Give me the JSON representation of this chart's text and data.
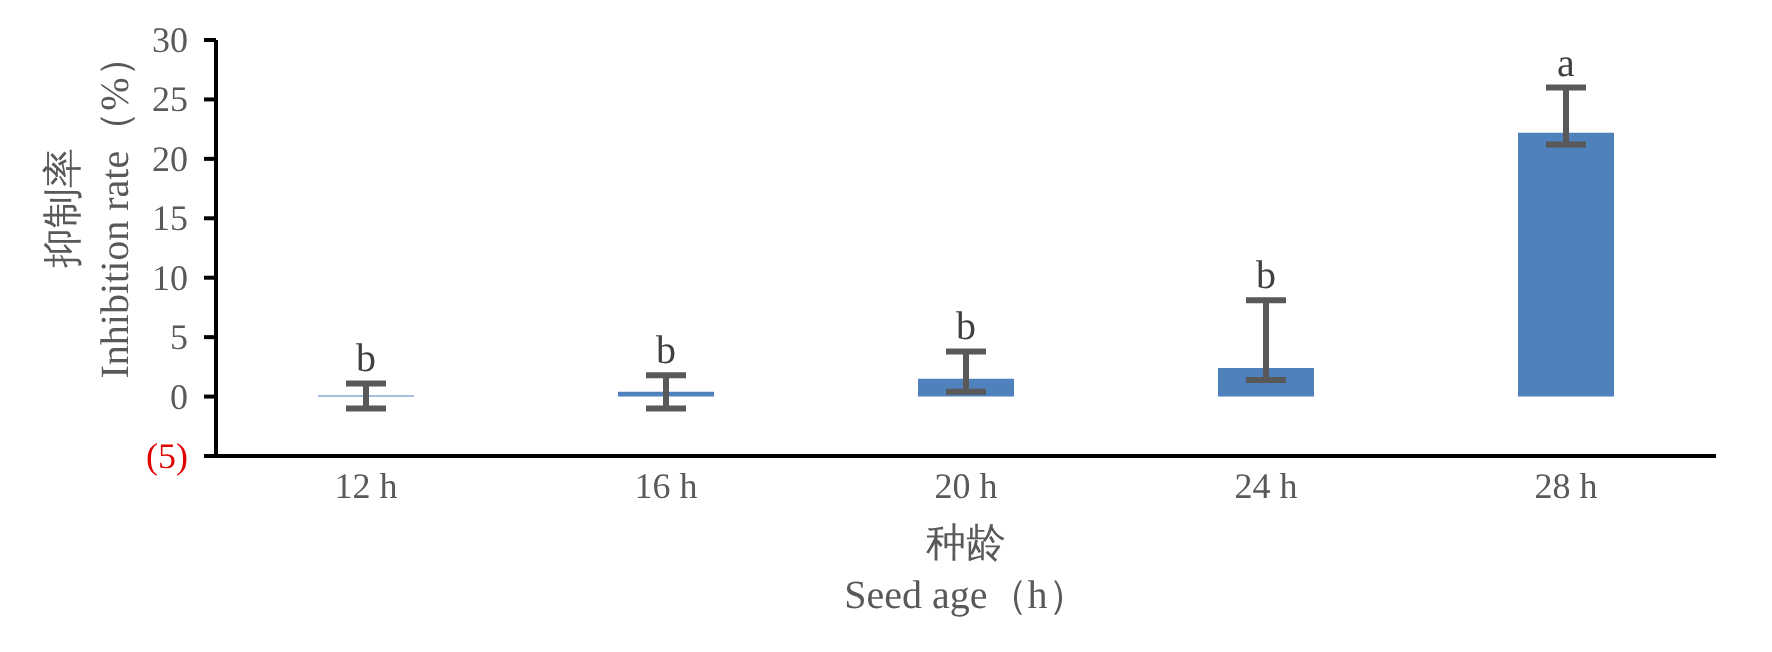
{
  "chart_data": {
    "type": "bar",
    "xlabel": "种龄\nSeed age（h）",
    "ylabel": "抑制率\nInhibition rate（%）",
    "categories": [
      "12 h",
      "16 h",
      "20 h",
      "24 h",
      "28 h"
    ],
    "values": [
      0.1,
      0.4,
      1.5,
      2.4,
      22.2
    ],
    "color": "#4f81bd",
    "errors": [
      [
        -1.0,
        1.1
      ],
      [
        -1.0,
        1.8
      ],
      [
        0.4,
        3.8
      ],
      [
        1.4,
        8.1
      ],
      [
        21.2,
        26.0
      ]
    ],
    "ylim": [
      -5,
      30
    ],
    "yticks": [
      {
        "value": -5,
        "label": "(5)"
      },
      0,
      5,
      10,
      15,
      20,
      25,
      30
    ],
    "annotations": [
      "b",
      "b",
      "b",
      "b",
      "a"
    ],
    "grid": false,
    "legend": false
  }
}
